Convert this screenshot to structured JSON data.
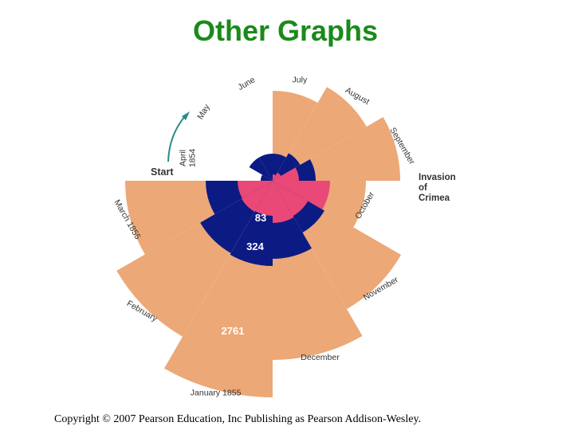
{
  "title": "Other Graphs",
  "copyright": "Copyright © 2007 Pearson Education, Inc Publishing as Pearson Addison-Wesley.",
  "annotations": {
    "start": "Start",
    "invasion": [
      "Invasion",
      "of",
      "Crimea"
    ]
  },
  "colors": {
    "preventable": "#eca877",
    "other": "#0c1a84",
    "wounds": "#ea4877",
    "title": "#1a8a1a",
    "arrow": "#2a8a8a"
  },
  "chart_data": {
    "type": "polar-area",
    "categories": [
      "April 1854",
      "May",
      "June",
      "July",
      "August",
      "September",
      "October",
      "November",
      "December",
      "January 1855",
      "February",
      "March 1855"
    ],
    "series": [],
    "start_direction": "left",
    "direction": "clockwise",
    "value_labels": [
      {
        "month": "October",
        "text": "83"
      },
      {
        "month": "October",
        "text": "324"
      },
      {
        "month": "January 1855",
        "text": "2761"
      }
    ]
  }
}
